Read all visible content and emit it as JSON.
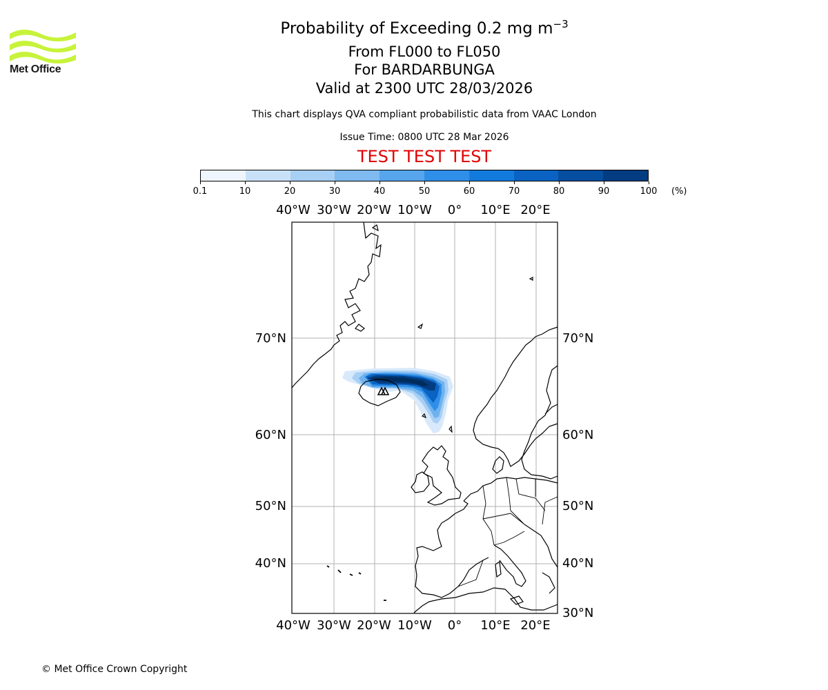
{
  "header": {
    "logo_text": "Met Office",
    "title_prefix": "Probability of Exceeding 0.2 mg m",
    "title_exponent": "−3",
    "flight_levels": "From FL000 to FL050",
    "volcano": "For BARDARBUNGA",
    "valid_time": "Valid at 2300 UTC 28/03/2026",
    "subtitle": "This chart displays QVA compliant probabilistic data from VAAC London",
    "issue_time": "Issue Time: 0800 UTC 28 Mar 2026",
    "test_banner": "TEST TEST TEST",
    "test_color": "#e00000"
  },
  "colorbar": {
    "labels": [
      "0.1",
      "10",
      "20",
      "30",
      "40",
      "50",
      "60",
      "70",
      "80",
      "90",
      "100"
    ],
    "colors": [
      "#eef5fd",
      "#c9e1f8",
      "#a8cff4",
      "#7fbaf0",
      "#57a5ec",
      "#2f8fe8",
      "#137add",
      "#0a63c2",
      "#054ea0",
      "#033c80",
      "#012c5e"
    ],
    "unit": "(%)"
  },
  "map": {
    "lon_labels": [
      "40°W",
      "30°W",
      "20°W",
      "10°W",
      "0°",
      "10°E",
      "20°E"
    ],
    "lat_labels_left": [
      "70°N",
      "60°N",
      "50°N",
      "40°N"
    ],
    "lat_labels_right": [
      "70°N",
      "60°N",
      "50°N",
      "40°N",
      "30°N"
    ],
    "volcano_marker": "volcano"
  },
  "footer": {
    "copyright": "© Met Office Crown Copyright"
  }
}
